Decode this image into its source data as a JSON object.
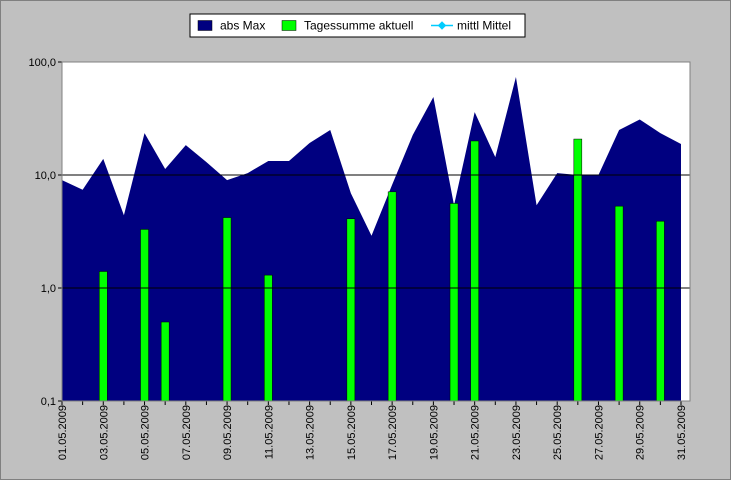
{
  "chart_data": {
    "type": "area_bar",
    "categories": [
      "01.05.2009",
      null,
      "03.05.2009",
      null,
      "05.05.2009",
      null,
      "07.05.2009",
      null,
      "09.05.2009",
      null,
      "11.05.2009",
      null,
      "13.05.2009",
      null,
      "15.05.2009",
      null,
      "17.05.2009",
      null,
      "19.05.2009",
      null,
      "21.05.2009",
      null,
      "23.05.2009",
      null,
      "25.05.2009",
      null,
      "27.05.2009",
      null,
      "29.05.2009",
      null,
      "31.05.2009"
    ],
    "series": [
      {
        "name": "abs Max",
        "type": "area",
        "color": "#000080",
        "values": [
          9,
          7.4,
          13.9,
          4.4,
          23.5,
          11.3,
          18.4,
          13,
          9,
          10.4,
          13.3,
          13.3,
          19.2,
          25,
          6.9,
          2.9,
          8.2,
          22.6,
          49,
          5.4,
          36,
          14.4,
          73.6,
          5.4,
          10.4,
          10,
          10,
          25,
          31,
          23.5,
          18.8
        ]
      },
      {
        "name": "Tagessumme aktuell",
        "type": "bar",
        "color": "#00ff00",
        "values": [
          null,
          null,
          1.4,
          null,
          3.3,
          0.5,
          null,
          null,
          4.2,
          null,
          1.3,
          null,
          null,
          null,
          4.1,
          null,
          7.1,
          null,
          null,
          5.6,
          20,
          null,
          null,
          null,
          null,
          20.8,
          null,
          5.3,
          null,
          3.9,
          null
        ]
      },
      {
        "name": "mittl Mittel",
        "type": "line",
        "color": "#00ccff",
        "values": [
          null,
          null,
          null,
          null,
          null,
          null,
          null,
          null,
          null,
          null,
          null,
          null,
          null,
          null,
          null,
          null,
          null,
          null,
          null,
          null,
          null,
          null,
          null,
          null,
          null,
          null,
          null,
          null,
          null,
          null,
          null
        ]
      }
    ],
    "yscale": "log",
    "ylim": [
      0.1,
      100
    ],
    "yticks": [
      {
        "value": 0.1,
        "label": "0,1"
      },
      {
        "value": 1,
        "label": "1,0"
      },
      {
        "value": 10,
        "label": "10,0"
      },
      {
        "value": 100,
        "label": "100,0"
      }
    ],
    "grid": true,
    "legend": "top"
  }
}
